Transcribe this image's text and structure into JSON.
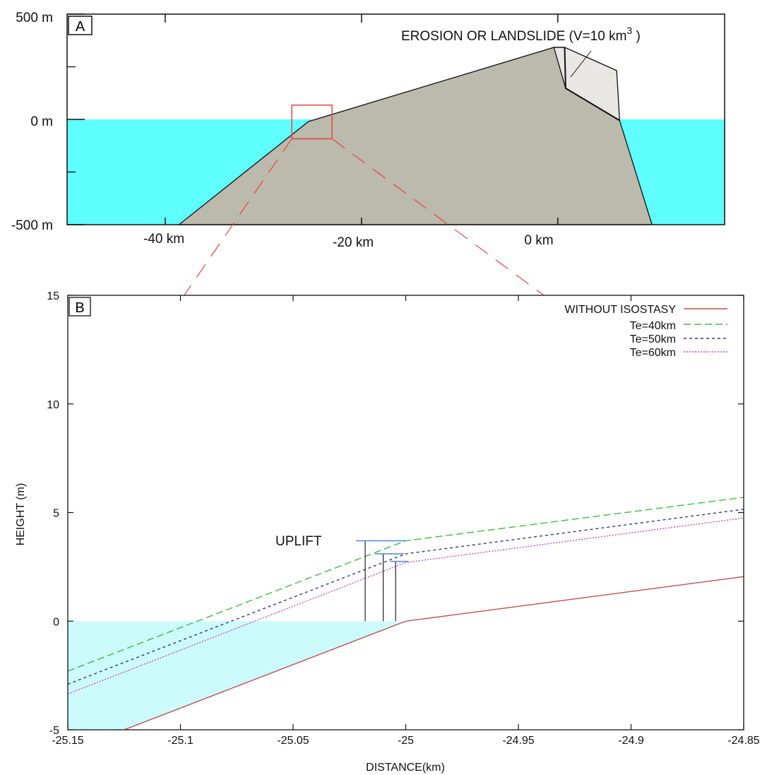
{
  "panel_a": {
    "label": "A",
    "annotation_prefix": "EROSION  OR  LANDSLIDE  (V=10 km",
    "annotation_sup": "3",
    "annotation_suffix": " )",
    "y_tick_labels": [
      "500 m",
      "0 m",
      "-500 m"
    ],
    "x_tick_labels": [
      "-40 km",
      "-20 km",
      "0 km"
    ],
    "colors": {
      "sea": "#5fffff",
      "island": "#bcb9ad",
      "removed_block": "#e8e7e3",
      "inset_box": "#e8453c"
    }
  },
  "panel_b": {
    "label": "B",
    "annotation": "UPLIFT",
    "colors": {
      "sea": "#ccfbfb",
      "uplift_marker": "#5b8fd6"
    }
  },
  "chart_data": [
    {
      "type": "area",
      "panel": "A",
      "xlim": [
        -50,
        17
      ],
      "ylim": [
        -500,
        500
      ],
      "x_ticks": [
        -40,
        -20,
        0
      ],
      "y_ticks": [
        500,
        0,
        -500
      ],
      "sea_level": 0,
      "island_profile": {
        "x": [
          -38.6,
          -25.4,
          -0.4,
          0.7,
          6.3,
          9.6
        ],
        "y": [
          -500,
          -10,
          342,
          342,
          -5,
          -500
        ]
      },
      "removed_block": {
        "x": [
          -0.4,
          0.7,
          6.0,
          6.3,
          0.8
        ],
        "y": [
          342,
          342,
          232,
          -5,
          148
        ]
      },
      "inset_box": {
        "x": [
          -27.1,
          -23.0
        ],
        "y": [
          -92,
          68
        ]
      }
    },
    {
      "type": "line",
      "panel": "B",
      "xlabel": "DISTANCE(km)",
      "ylabel": "HEIGHT (m)",
      "xlim": [
        -25.15,
        -24.85
      ],
      "ylim": [
        -5,
        15
      ],
      "x_ticks": [
        -25.15,
        -25.1,
        -25.05,
        -25,
        -24.95,
        -24.9,
        -24.85
      ],
      "x_tick_labels": [
        "-25.15",
        "-25.1",
        "-25.05",
        "-25",
        "-24.95",
        "-24.9",
        "-24.85"
      ],
      "y_ticks": [
        -5,
        0,
        5,
        10,
        15
      ],
      "y_tick_labels": [
        "-5",
        "0",
        "5",
        "10",
        "15"
      ],
      "legend_position": "top-right",
      "series": [
        {
          "name": "WITHOUT ISOSTASY",
          "x": [
            -25.125,
            -25,
            -24.85
          ],
          "y": [
            -5,
            0,
            2.05
          ],
          "color": "#c0504d",
          "dash": "solid"
        },
        {
          "name": "Te=40km",
          "x": [
            -25.15,
            -25,
            -24.85
          ],
          "y": [
            -2.3,
            3.7,
            5.7
          ],
          "color": "#3dbd3d",
          "dash": "10,5"
        },
        {
          "name": "Te=50km",
          "x": [
            -25.15,
            -25,
            -24.85
          ],
          "y": [
            -2.9,
            3.1,
            5.15
          ],
          "color": "#2f3796",
          "dash": "4,4"
        },
        {
          "name": "Te=60km",
          "x": [
            -25.15,
            -25,
            -24.85
          ],
          "y": [
            -3.35,
            2.7,
            4.75
          ],
          "color": "#c44fc4",
          "dash": "2,2"
        }
      ],
      "uplift_markers": [
        {
          "x": -25.018,
          "y": 3.7
        },
        {
          "x": -25.01,
          "y": 3.1
        },
        {
          "x": -25.0045,
          "y": 2.75
        }
      ]
    }
  ]
}
